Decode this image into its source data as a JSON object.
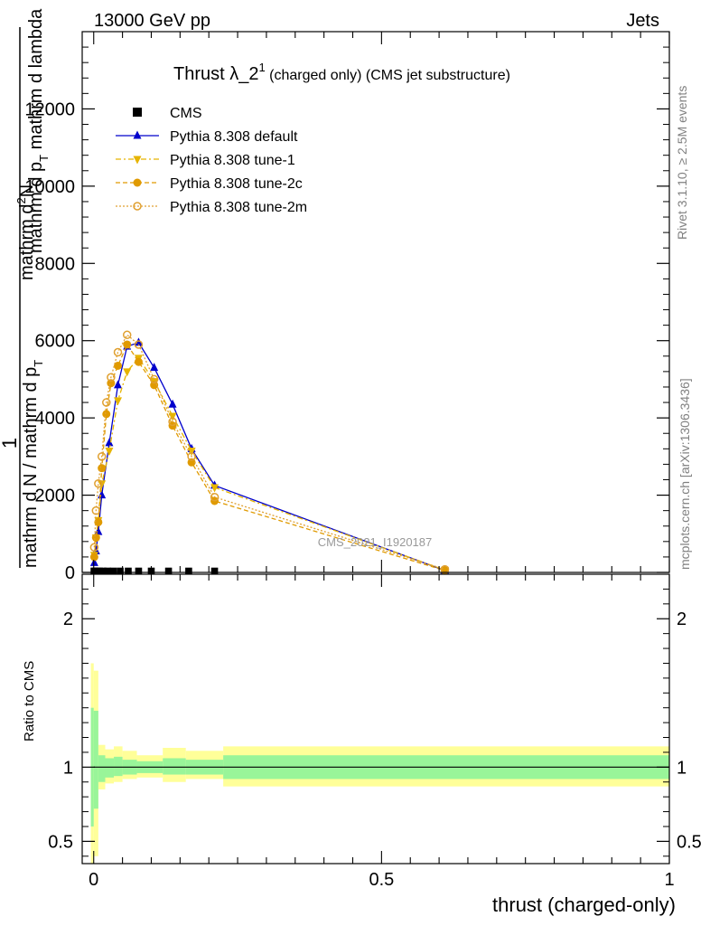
{
  "header": {
    "left": "13000 GeV pp",
    "right": "Jets"
  },
  "title": {
    "main": "Thrust λ_2",
    "sup": "1",
    "rest": " (charged only) (CMS jet substructure)"
  },
  "side_labels": {
    "rivet": "Rivet 3.1.10, ≥ 2.5M events",
    "mcplots": "mcplots.cern.ch [arXiv:1306.3436]"
  },
  "watermark": "CMS_2021_I1920187",
  "ylabel_main": {
    "line1": "mathrm d",
    "line1_sup": "2",
    "line1_rest": "N",
    "line2": "mathrm d p",
    "line2_sub": "T",
    "line2_rest": " mathrm d lambda",
    "one": "1",
    "denom": "mathrm d N / mathrm d p",
    "denom_sub": "T"
  },
  "ylabel_ratio": "Ratio to CMS",
  "xlabel": "thrust (charged-only)",
  "legend": [
    {
      "label": "CMS",
      "color": "#000000",
      "marker": "square",
      "dash": ""
    },
    {
      "label": "Pythia 8.308 default",
      "color": "#0000cc",
      "marker": "triangle-up",
      "dash": ""
    },
    {
      "label": "Pythia 8.308 tune-1",
      "color": "#e6b400",
      "marker": "triangle-down",
      "dash": "6,3,2,3"
    },
    {
      "label": "Pythia 8.308 tune-2c",
      "color": "#e09a00",
      "marker": "circle",
      "dash": "5,3"
    },
    {
      "label": "Pythia 8.308 tune-2m",
      "color": "#e0a030",
      "marker": "circle-open",
      "dash": "2,2"
    }
  ],
  "chart_data": [
    {
      "type": "line",
      "xlim": [
        -0.02,
        1.0
      ],
      "ylim": [
        0,
        14000
      ],
      "yticks": [
        0,
        2000,
        4000,
        6000,
        8000,
        10000,
        12000
      ],
      "ytick_labels": [
        "0",
        "2000",
        "4000",
        "6000",
        "8000",
        "10000",
        "12000"
      ],
      "grid": false,
      "series": [
        {
          "name": "CMS",
          "x": [
            0.0005,
            0.0025,
            0.0055,
            0.01,
            0.016,
            0.024,
            0.034,
            0.046,
            0.06,
            0.078,
            0.1,
            0.13,
            0.165,
            0.21
          ],
          "y": [
            0,
            0,
            0,
            0,
            0,
            0,
            0,
            0,
            0,
            0,
            0,
            0,
            0,
            0
          ]
        },
        {
          "name": "Pythia 8.308 default",
          "x": [
            0.001,
            0.004,
            0.008,
            0.014,
            0.027,
            0.042,
            0.058,
            0.078,
            0.105,
            0.137,
            0.17,
            0.21,
            0.61
          ],
          "y": [
            250,
            550,
            1050,
            2000,
            3350,
            4850,
            5850,
            5950,
            5300,
            4350,
            3200,
            2250,
            50
          ]
        },
        {
          "name": "Pythia 8.308 tune-1",
          "x": [
            0.001,
            0.004,
            0.008,
            0.014,
            0.027,
            0.042,
            0.058,
            0.078,
            0.105,
            0.137,
            0.17,
            0.21,
            0.61
          ],
          "y": [
            450,
            900,
            1350,
            2300,
            3150,
            4450,
            5200,
            5550,
            4950,
            4050,
            3150,
            2200,
            60
          ]
        },
        {
          "name": "Pythia 8.308 tune-2c",
          "x": [
            0.001,
            0.004,
            0.008,
            0.014,
            0.022,
            0.03,
            0.042,
            0.058,
            0.078,
            0.105,
            0.137,
            0.17,
            0.21,
            0.61
          ],
          "y": [
            400,
            900,
            1300,
            2700,
            4100,
            4900,
            5350,
            5900,
            5450,
            4850,
            3800,
            2850,
            1850,
            50
          ]
        },
        {
          "name": "Pythia 8.308 tune-2m",
          "x": [
            0.001,
            0.004,
            0.008,
            0.014,
            0.022,
            0.03,
            0.042,
            0.058,
            0.078,
            0.105,
            0.137,
            0.17,
            0.21,
            0.61
          ],
          "y": [
            650,
            1600,
            2300,
            3000,
            4400,
            5050,
            5700,
            6150,
            5900,
            5000,
            3900,
            3000,
            1950,
            80
          ]
        }
      ]
    },
    {
      "type": "area",
      "xlim": [
        -0.02,
        1.0
      ],
      "ylim": [
        0.35,
        2.3
      ],
      "yticks": [
        0.5,
        1,
        2
      ],
      "ytick_labels": [
        "0.5",
        "1",
        "2"
      ],
      "xticks": [
        0,
        0.5,
        1
      ],
      "xtick_labels": [
        "0",
        "0.5",
        "1"
      ],
      "grid": false,
      "band_colors": {
        "stat": "#99f599",
        "total": "#ffff99"
      },
      "bands": [
        {
          "x0": -0.005,
          "x1": 0.0,
          "stat_lo": 0.6,
          "stat_hi": 1.4,
          "tot_lo": 0.35,
          "tot_hi": 1.7
        },
        {
          "x0": 0.0,
          "x1": 0.008,
          "stat_lo": 0.72,
          "stat_hi": 1.38,
          "tot_lo": 0.4,
          "tot_hi": 1.65
        },
        {
          "x0": 0.008,
          "x1": 0.02,
          "stat_lo": 0.9,
          "stat_hi": 1.08,
          "tot_lo": 0.85,
          "tot_hi": 1.15
        },
        {
          "x0": 0.02,
          "x1": 0.035,
          "stat_lo": 0.93,
          "stat_hi": 1.06,
          "tot_lo": 0.89,
          "tot_hi": 1.12
        },
        {
          "x0": 0.035,
          "x1": 0.05,
          "stat_lo": 0.94,
          "stat_hi": 1.07,
          "tot_lo": 0.9,
          "tot_hi": 1.14
        },
        {
          "x0": 0.05,
          "x1": 0.075,
          "stat_lo": 0.95,
          "stat_hi": 1.05,
          "tot_lo": 0.92,
          "tot_hi": 1.11
        },
        {
          "x0": 0.075,
          "x1": 0.12,
          "stat_lo": 0.96,
          "stat_hi": 1.04,
          "tot_lo": 0.93,
          "tot_hi": 1.08
        },
        {
          "x0": 0.12,
          "x1": 0.16,
          "stat_lo": 0.95,
          "stat_hi": 1.06,
          "tot_lo": 0.9,
          "tot_hi": 1.13
        },
        {
          "x0": 0.16,
          "x1": 0.225,
          "stat_lo": 0.95,
          "stat_hi": 1.05,
          "tot_lo": 0.92,
          "tot_hi": 1.11
        },
        {
          "x0": 0.225,
          "x1": 1.0,
          "stat_lo": 0.92,
          "stat_hi": 1.08,
          "tot_lo": 0.87,
          "tot_hi": 1.14
        }
      ]
    }
  ]
}
